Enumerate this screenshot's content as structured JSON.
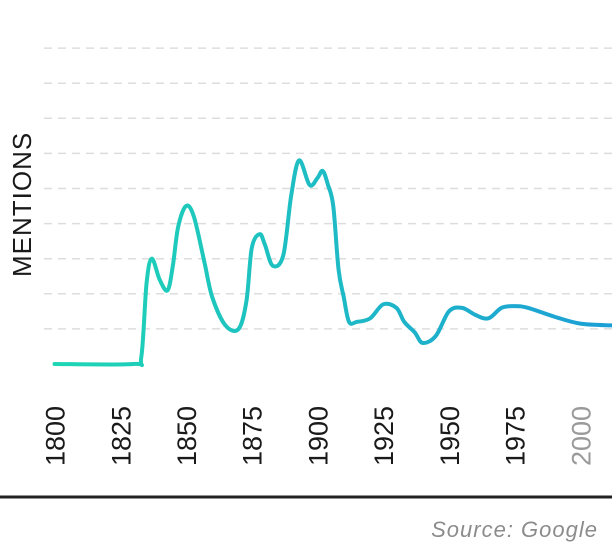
{
  "chart_data": {
    "type": "line",
    "title": "",
    "xlabel": "",
    "ylabel": "MENTIONS",
    "source": "Source: Google",
    "xlim": [
      1796,
      2012
    ],
    "ylim": [
      0,
      10
    ],
    "grid": "horizontal-dashed",
    "x_ticks": [
      "1800",
      "1825",
      "1850",
      "1875",
      "1900",
      "1925",
      "1950",
      "1975",
      "2000"
    ],
    "faded_ticks": [
      "2000"
    ],
    "colors": {
      "line_start": "#1ed6b4",
      "line_end": "#1d9fd6",
      "grid": "#dddddd",
      "axis": "#222222"
    },
    "series": [
      {
        "name": "",
        "x": [
          1800,
          1830,
          1833,
          1835,
          1837,
          1840,
          1843,
          1845,
          1847,
          1850,
          1853,
          1857,
          1860,
          1865,
          1870,
          1873,
          1875,
          1878,
          1880,
          1883,
          1887,
          1890,
          1893,
          1897,
          1900,
          1902,
          1904,
          1906,
          1908,
          1910,
          1912,
          1915,
          1920,
          1925,
          1930,
          1933,
          1937,
          1940,
          1945,
          1950,
          1955,
          1960,
          1965,
          1970,
          1975,
          1980,
          1990,
          2000,
          2012
        ],
        "y": [
          0,
          0,
          0.2,
          2.3,
          3,
          2.4,
          2.1,
          2.8,
          3.9,
          4.5,
          4.2,
          2.9,
          1.9,
          1.1,
          1.0,
          1.8,
          3.3,
          3.7,
          3.4,
          2.8,
          3.1,
          4.8,
          5.8,
          5.1,
          5.3,
          5.5,
          5.1,
          4.5,
          2.7,
          1.9,
          1.2,
          1.2,
          1.3,
          1.7,
          1.6,
          1.2,
          0.9,
          0.6,
          0.8,
          1.5,
          1.6,
          1.4,
          1.3,
          1.6,
          1.65,
          1.6,
          1.35,
          1.15,
          1.1
        ]
      }
    ]
  }
}
